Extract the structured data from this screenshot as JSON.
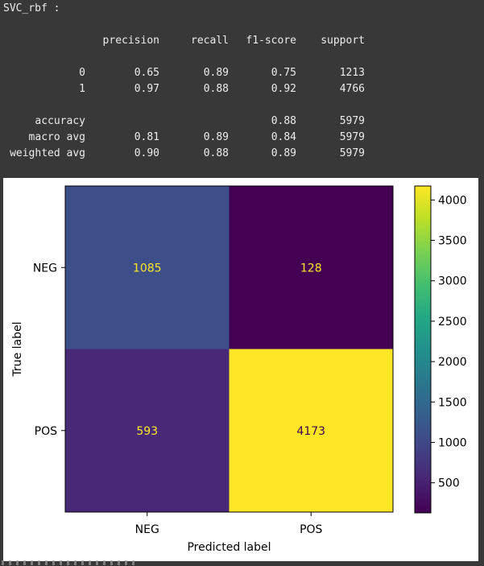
{
  "output": {
    "model_title": "SVC_rbf :",
    "report": {
      "headers": [
        "precision",
        "recall",
        "f1-score",
        "support"
      ],
      "rows": [
        {
          "label": "0",
          "values": [
            "0.65",
            "0.89",
            "0.75",
            "1213"
          ]
        },
        {
          "label": "1",
          "values": [
            "0.97",
            "0.88",
            "0.92",
            "4766"
          ]
        },
        {
          "label": "accuracy",
          "values": [
            "",
            "",
            "0.88",
            "5979"
          ]
        },
        {
          "label": "macro avg",
          "values": [
            "0.81",
            "0.89",
            "0.84",
            "5979"
          ]
        },
        {
          "label": "weighted avg",
          "values": [
            "0.90",
            "0.88",
            "0.89",
            "5979"
          ]
        }
      ]
    }
  },
  "chart_data": {
    "type": "heatmap",
    "title": "",
    "xlabel": "Predicted label",
    "ylabel": "True label",
    "x_categories": [
      "NEG",
      "POS"
    ],
    "y_categories": [
      "NEG",
      "POS"
    ],
    "matrix": [
      [
        1085,
        128
      ],
      [
        593,
        4173
      ]
    ],
    "colormap": "viridis",
    "colorbar": {
      "ticks": [
        500,
        1000,
        1500,
        2000,
        2500,
        3000,
        3500,
        4000
      ],
      "range": [
        128,
        4173
      ]
    },
    "text_colors": {
      "on_dark": "#fde725",
      "on_light": "#440154"
    }
  }
}
